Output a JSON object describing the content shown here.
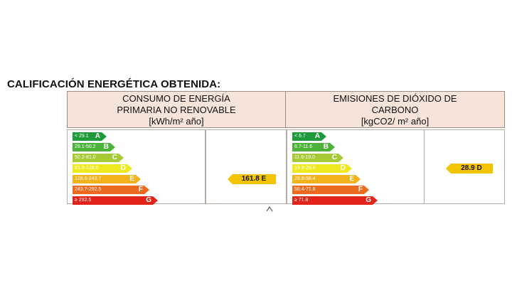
{
  "page_title": "CALIFICACIÓN ENERGÉTICA OBTENIDA:",
  "consumption": {
    "header_line1": "CONSUMO DE ENERGÍA",
    "header_line2": "PRIMARIA NO RENOVABLE",
    "header_unit": "[kWh/m² año]",
    "rating_value": "161.8",
    "rating_letter": "E",
    "scale": [
      {
        "range": "< 29.1",
        "letter": "A",
        "color": "#1f9a3b"
      },
      {
        "range": "29.1-50.2",
        "letter": "B",
        "color": "#4db23a"
      },
      {
        "range": "50.2-81.0",
        "letter": "C",
        "color": "#a6c936"
      },
      {
        "range": "81.0-128.6",
        "letter": "D",
        "color": "#eee91f"
      },
      {
        "range": "128.6-243.7",
        "letter": "E",
        "color": "#f2b21a"
      },
      {
        "range": "243.7-292.5",
        "letter": "F",
        "color": "#ec6a1e"
      },
      {
        "range": "≥ 292.5",
        "letter": "G",
        "color": "#e2231a"
      }
    ]
  },
  "emissions": {
    "header_line1": "EMISIONES DE DIÓXIDO DE",
    "header_line2": "CARBONO",
    "header_unit": "[kgCO2/ m² año]",
    "rating_value": "28.9",
    "rating_letter": "D",
    "scale": [
      {
        "range": "< 6.7",
        "letter": "A",
        "color": "#1f9a3b"
      },
      {
        "range": "6.7-11.6",
        "letter": "B",
        "color": "#4db23a"
      },
      {
        "range": "11.6-19.0",
        "letter": "C",
        "color": "#a6c936"
      },
      {
        "range": "19.0-29.8",
        "letter": "D",
        "color": "#eee91f"
      },
      {
        "range": "29.8-58.4",
        "letter": "E",
        "color": "#f2b21a"
      },
      {
        "range": "58.4-71.8",
        "letter": "F",
        "color": "#ec6a1e"
      },
      {
        "range": "≥ 71.8",
        "letter": "G",
        "color": "#e2231a"
      }
    ]
  }
}
